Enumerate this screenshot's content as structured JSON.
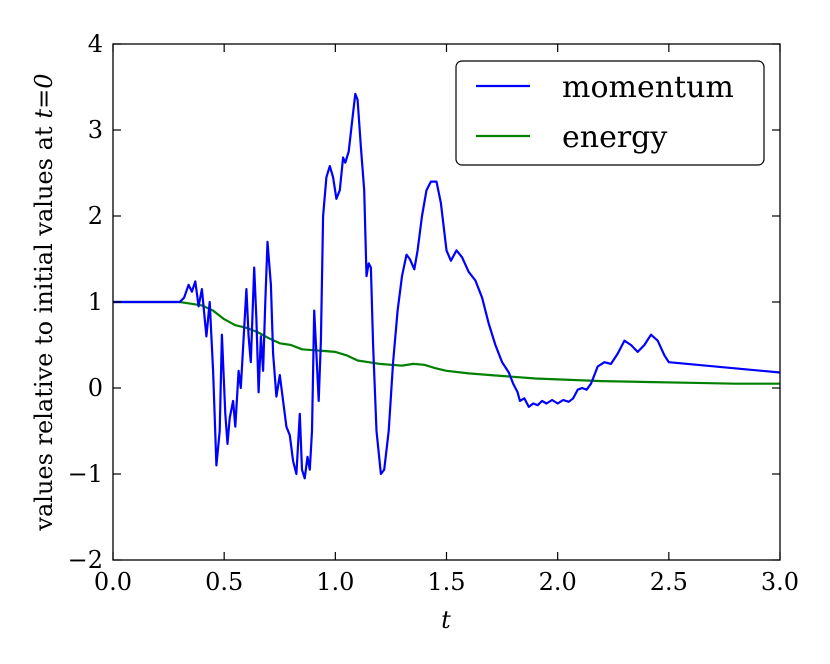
{
  "chart_data": {
    "type": "line",
    "title": "",
    "xlabel": "t",
    "ylabel": "values relative to initial values at",
    "ylabel_math": "t=0",
    "xlim": [
      0.0,
      3.0
    ],
    "ylim": [
      -2,
      4
    ],
    "x_ticks": [
      0.0,
      0.5,
      1.0,
      1.5,
      2.0,
      2.5,
      3.0
    ],
    "x_tick_labels": [
      "0.0",
      "0.5",
      "1.0",
      "1.5",
      "2.0",
      "2.5",
      "3.0"
    ],
    "y_ticks": [
      -2,
      -1,
      0,
      1,
      2,
      3,
      4
    ],
    "y_tick_labels": [
      "−2",
      "−1",
      "0",
      "1",
      "2",
      "3",
      "4"
    ],
    "legend_placement": "top-right",
    "grid": false,
    "series": [
      {
        "name": "momentum",
        "color": "#0000ff",
        "points": [
          [
            0.0,
            1.0
          ],
          [
            0.3,
            1.0
          ],
          [
            0.32,
            1.05
          ],
          [
            0.34,
            1.2
          ],
          [
            0.355,
            1.12
          ],
          [
            0.37,
            1.24
          ],
          [
            0.385,
            0.95
          ],
          [
            0.4,
            1.15
          ],
          [
            0.42,
            0.6
          ],
          [
            0.435,
            1.0
          ],
          [
            0.45,
            0.2
          ],
          [
            0.465,
            -0.9
          ],
          [
            0.48,
            -0.5
          ],
          [
            0.49,
            0.62
          ],
          [
            0.505,
            -0.3
          ],
          [
            0.515,
            -0.65
          ],
          [
            0.525,
            -0.35
          ],
          [
            0.54,
            -0.15
          ],
          [
            0.55,
            -0.45
          ],
          [
            0.565,
            0.2
          ],
          [
            0.575,
            0.0
          ],
          [
            0.59,
            0.7
          ],
          [
            0.6,
            1.15
          ],
          [
            0.61,
            0.6
          ],
          [
            0.62,
            0.3
          ],
          [
            0.635,
            1.4
          ],
          [
            0.645,
            0.8
          ],
          [
            0.655,
            -0.05
          ],
          [
            0.665,
            0.6
          ],
          [
            0.675,
            0.2
          ],
          [
            0.685,
            1.0
          ],
          [
            0.695,
            1.7
          ],
          [
            0.71,
            1.2
          ],
          [
            0.72,
            0.4
          ],
          [
            0.735,
            -0.1
          ],
          [
            0.75,
            0.15
          ],
          [
            0.765,
            -0.15
          ],
          [
            0.78,
            -0.45
          ],
          [
            0.795,
            -0.55
          ],
          [
            0.81,
            -0.85
          ],
          [
            0.825,
            -1.0
          ],
          [
            0.84,
            -0.3
          ],
          [
            0.85,
            -0.95
          ],
          [
            0.862,
            -1.05
          ],
          [
            0.875,
            -0.8
          ],
          [
            0.885,
            -0.95
          ],
          [
            0.895,
            -0.5
          ],
          [
            0.905,
            0.9
          ],
          [
            0.915,
            0.4
          ],
          [
            0.925,
            -0.15
          ],
          [
            0.935,
            0.55
          ],
          [
            0.945,
            2.0
          ],
          [
            0.96,
            2.45
          ],
          [
            0.975,
            2.58
          ],
          [
            0.99,
            2.45
          ],
          [
            1.005,
            2.2
          ],
          [
            1.02,
            2.3
          ],
          [
            1.035,
            2.68
          ],
          [
            1.045,
            2.62
          ],
          [
            1.06,
            2.75
          ],
          [
            1.08,
            3.2
          ],
          [
            1.09,
            3.42
          ],
          [
            1.1,
            3.35
          ],
          [
            1.115,
            2.8
          ],
          [
            1.13,
            2.3
          ],
          [
            1.14,
            1.3
          ],
          [
            1.15,
            1.45
          ],
          [
            1.16,
            1.4
          ],
          [
            1.17,
            0.5
          ],
          [
            1.185,
            -0.5
          ],
          [
            1.205,
            -1.0
          ],
          [
            1.22,
            -0.95
          ],
          [
            1.24,
            -0.5
          ],
          [
            1.26,
            0.3
          ],
          [
            1.28,
            0.9
          ],
          [
            1.3,
            1.3
          ],
          [
            1.32,
            1.55
          ],
          [
            1.335,
            1.5
          ],
          [
            1.355,
            1.38
          ],
          [
            1.37,
            1.6
          ],
          [
            1.39,
            2.0
          ],
          [
            1.41,
            2.3
          ],
          [
            1.43,
            2.4
          ],
          [
            1.455,
            2.4
          ],
          [
            1.475,
            2.15
          ],
          [
            1.5,
            1.6
          ],
          [
            1.52,
            1.48
          ],
          [
            1.545,
            1.6
          ],
          [
            1.57,
            1.52
          ],
          [
            1.6,
            1.35
          ],
          [
            1.63,
            1.25
          ],
          [
            1.66,
            1.05
          ],
          [
            1.69,
            0.75
          ],
          [
            1.72,
            0.5
          ],
          [
            1.75,
            0.3
          ],
          [
            1.78,
            0.18
          ],
          [
            1.8,
            0.05
          ],
          [
            1.82,
            -0.05
          ],
          [
            1.83,
            -0.15
          ],
          [
            1.85,
            -0.12
          ],
          [
            1.87,
            -0.22
          ],
          [
            1.89,
            -0.18
          ],
          [
            1.91,
            -0.2
          ],
          [
            1.93,
            -0.15
          ],
          [
            1.95,
            -0.18
          ],
          [
            1.975,
            -0.14
          ],
          [
            2.0,
            -0.18
          ],
          [
            2.025,
            -0.14
          ],
          [
            2.05,
            -0.16
          ],
          [
            2.07,
            -0.12
          ],
          [
            2.09,
            -0.02
          ],
          [
            2.11,
            0.0
          ],
          [
            2.13,
            -0.02
          ],
          [
            2.15,
            0.05
          ],
          [
            2.18,
            0.25
          ],
          [
            2.21,
            0.3
          ],
          [
            2.24,
            0.28
          ],
          [
            2.27,
            0.4
          ],
          [
            2.3,
            0.55
          ],
          [
            2.33,
            0.5
          ],
          [
            2.36,
            0.42
          ],
          [
            2.39,
            0.5
          ],
          [
            2.42,
            0.62
          ],
          [
            2.45,
            0.55
          ],
          [
            2.48,
            0.38
          ],
          [
            2.5,
            0.3
          ],
          [
            3.0,
            0.18
          ]
        ]
      },
      {
        "name": "energy",
        "color": "#008000",
        "points": [
          [
            0.0,
            1.0
          ],
          [
            0.3,
            1.0
          ],
          [
            0.35,
            0.98
          ],
          [
            0.4,
            0.96
          ],
          [
            0.45,
            0.9
          ],
          [
            0.5,
            0.8
          ],
          [
            0.55,
            0.73
          ],
          [
            0.6,
            0.7
          ],
          [
            0.65,
            0.65
          ],
          [
            0.7,
            0.58
          ],
          [
            0.75,
            0.52
          ],
          [
            0.8,
            0.5
          ],
          [
            0.85,
            0.45
          ],
          [
            0.9,
            0.44
          ],
          [
            0.95,
            0.43
          ],
          [
            1.0,
            0.42
          ],
          [
            1.05,
            0.38
          ],
          [
            1.1,
            0.32
          ],
          [
            1.15,
            0.3
          ],
          [
            1.2,
            0.28
          ],
          [
            1.25,
            0.27
          ],
          [
            1.3,
            0.26
          ],
          [
            1.35,
            0.28
          ],
          [
            1.4,
            0.27
          ],
          [
            1.45,
            0.23
          ],
          [
            1.5,
            0.2
          ],
          [
            1.6,
            0.17
          ],
          [
            1.7,
            0.15
          ],
          [
            1.8,
            0.13
          ],
          [
            1.9,
            0.11
          ],
          [
            2.0,
            0.1
          ],
          [
            2.2,
            0.08
          ],
          [
            2.4,
            0.07
          ],
          [
            2.6,
            0.06
          ],
          [
            2.8,
            0.05
          ],
          [
            3.0,
            0.05
          ]
        ]
      }
    ]
  }
}
